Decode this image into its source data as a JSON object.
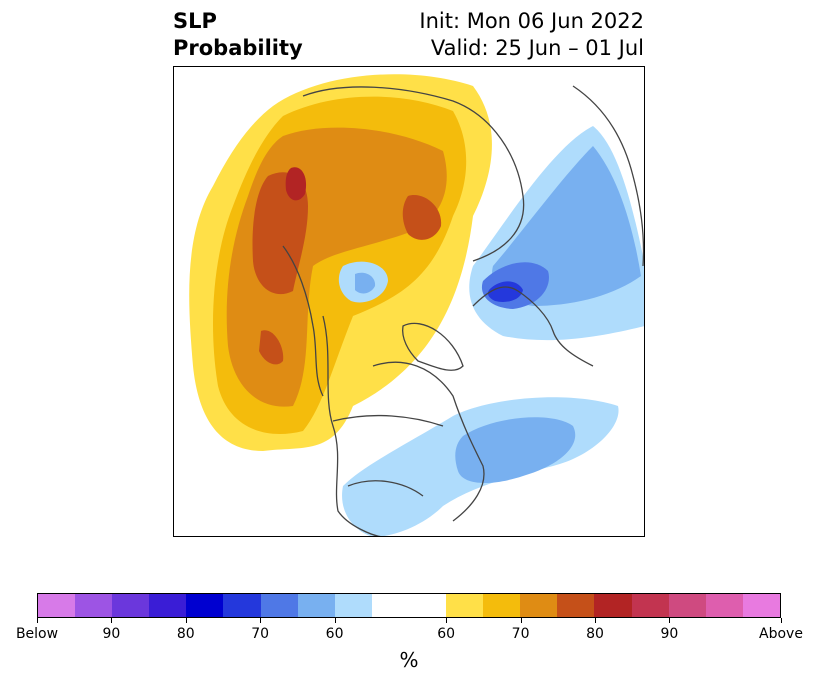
{
  "title": {
    "left_line1": "SLP",
    "left_line2": "Probability",
    "right_line1": "Init: Mon 06 Jun 2022",
    "right_line2": "Valid: 25 Jun – 01 Jul"
  },
  "colorbar": {
    "unit_label": "%",
    "segments": [
      "#d77ae8",
      "#9d54e4",
      "#6b37dc",
      "#3a1dd6",
      "#0000d0",
      "#2438dc",
      "#4f78e6",
      "#78b0f0",
      "#afdcfc",
      "#ffffff",
      "#ffffff",
      "#ffe048",
      "#f4bc0c",
      "#df8c14",
      "#c55019",
      "#b22424",
      "#c23450",
      "#cf4a80",
      "#de5eae",
      "#e87ae0"
    ],
    "tick_labels": [
      "Below",
      "90",
      "80",
      "70",
      "60",
      "60",
      "70",
      "80",
      "90",
      "Above"
    ]
  },
  "legend": {
    "below_colors": [
      "#afdcfc",
      "#78b0f0",
      "#4f78e6",
      "#2438dc"
    ],
    "above_colors": [
      "#ffe048",
      "#f4bc0c",
      "#df8c14",
      "#c55019",
      "#b22424"
    ]
  }
}
